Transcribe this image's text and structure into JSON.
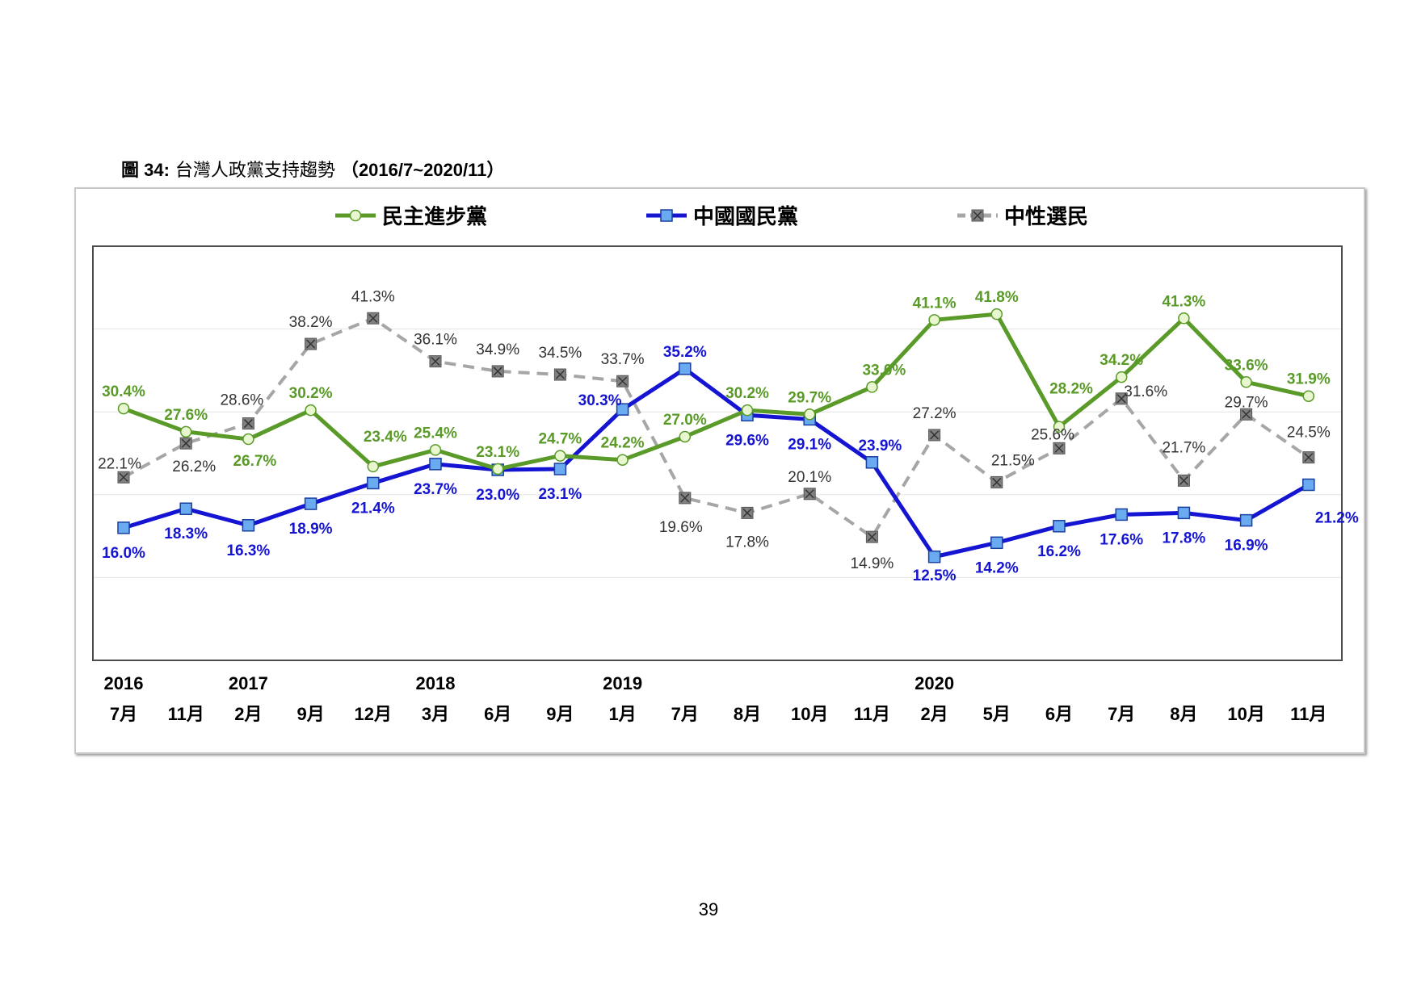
{
  "figure": {
    "label": "圖 34:",
    "title": "台灣人政黨支持趨勢",
    "range": "（2016/7~2020/11）"
  },
  "page_number": "39",
  "chart_data": {
    "type": "line",
    "categories": [
      "7月",
      "11月",
      "2月",
      "9月",
      "12月",
      "3月",
      "6月",
      "9月",
      "1月",
      "7月",
      "8月",
      "10月",
      "11月",
      "2月",
      "5月",
      "6月",
      "7月",
      "8月",
      "10月",
      "11月"
    ],
    "years": [
      "2016",
      "",
      "2017",
      "",
      "",
      "2018",
      "",
      "",
      "2019",
      "",
      "",
      "",
      "",
      "2020",
      "",
      "",
      "",
      "",
      "",
      ""
    ],
    "ylim": [
      0,
      50
    ],
    "grid": true,
    "legend_position": "top",
    "series": [
      {
        "name": "民主進步黨",
        "color": "#5a9a28",
        "marker_fill": "#e8f7d0",
        "marker": "circle",
        "style": "solid",
        "values": [
          30.4,
          27.6,
          26.7,
          30.2,
          23.4,
          25.4,
          23.1,
          24.7,
          24.2,
          27.0,
          30.2,
          29.7,
          33.0,
          41.1,
          41.8,
          28.2,
          34.2,
          41.3,
          33.6,
          31.9
        ],
        "labels": [
          "30.4%",
          "27.6%",
          "26.7%",
          "30.2%",
          "23.4%",
          "25.4%",
          "23.1%",
          "24.7%",
          "24.2%",
          "27.0%",
          "30.2%",
          "29.7%",
          "33.0%",
          "41.1%",
          "41.8%",
          "28.2%",
          "34.2%",
          "41.3%",
          "33.6%",
          "31.9%"
        ]
      },
      {
        "name": "中國國民黨",
        "color": "#1414d2",
        "marker_fill": "#6aaaf0",
        "marker": "square",
        "style": "solid",
        "values": [
          16.0,
          18.3,
          16.3,
          18.9,
          21.4,
          23.7,
          23.0,
          23.1,
          30.3,
          35.2,
          29.6,
          29.1,
          23.9,
          12.5,
          14.2,
          16.2,
          17.6,
          17.8,
          16.9,
          21.2
        ],
        "labels": [
          "16.0%",
          "18.3%",
          "16.3%",
          "18.9%",
          "21.4%",
          "23.7%",
          "23.0%",
          "23.1%",
          "30.3%",
          "35.2%",
          "29.6%",
          "29.1%",
          "23.9%",
          "12.5%",
          "14.2%",
          "16.2%",
          "17.6%",
          "17.8%",
          "16.9%",
          "21.2%"
        ]
      },
      {
        "name": "中性選民",
        "color": "#a6a6a6",
        "marker_fill": "#808080",
        "marker": "x-square",
        "style": "dashed",
        "values": [
          22.1,
          26.2,
          28.6,
          38.2,
          41.3,
          36.1,
          34.9,
          34.5,
          33.7,
          19.6,
          17.8,
          20.1,
          14.9,
          27.2,
          21.5,
          25.6,
          31.6,
          21.7,
          29.7,
          24.5
        ],
        "labels": [
          "22.1%",
          "26.2%",
          "28.6%",
          "38.2%",
          "41.3%",
          "36.1%",
          "34.9%",
          "34.5%",
          "33.7%",
          "19.6%",
          "17.8%",
          "20.1%",
          "14.9%",
          "27.2%",
          "21.5%",
          "25.6%",
          "31.6%",
          "21.7%",
          "29.7%",
          "24.5%"
        ]
      }
    ]
  }
}
